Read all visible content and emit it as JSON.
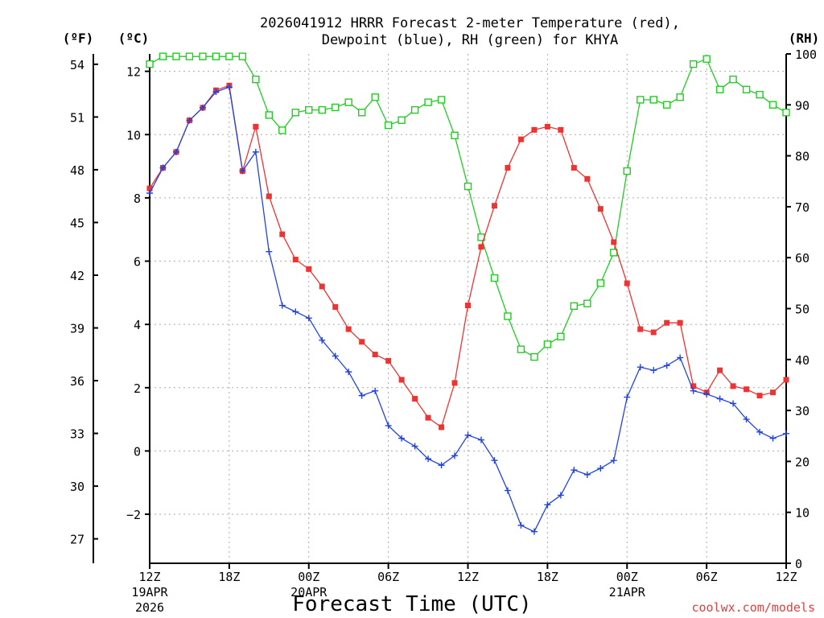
{
  "chart_data": {
    "type": "line",
    "title_line1": "2026041912 HRRR Forecast 2-meter Temperature (red),",
    "title_line2": "Dewpoint (blue), RH (green) for KHYA",
    "xlabel": "Forecast Time (UTC)",
    "credit": "coolwx.com/models",
    "units": {
      "fahrenheit": "(ºF)",
      "celsius": "(ºC)",
      "rh": "(RH)"
    },
    "x_forecast_hours": [
      0,
      48
    ],
    "c_ylim": [
      -3.55,
      12.55
    ],
    "rh_ylim": [
      0,
      100
    ],
    "c_ticks": [
      -2,
      0,
      2,
      4,
      6,
      8,
      10,
      12
    ],
    "c_tick_labels": [
      "−2",
      "0",
      "2",
      "4",
      "6",
      "8",
      "10",
      "12"
    ],
    "f_ticks": [
      27,
      30,
      33,
      36,
      39,
      42,
      45,
      48,
      51,
      54
    ],
    "f_tick_labels": [
      "27",
      "30",
      "33",
      "36",
      "39",
      "42",
      "45",
      "48",
      "51",
      "54"
    ],
    "rh_ticks": [
      0,
      10,
      20,
      30,
      40,
      50,
      60,
      70,
      80,
      90,
      100
    ],
    "rh_tick_labels": [
      "0",
      "10",
      "20",
      "30",
      "40",
      "50",
      "60",
      "70",
      "80",
      "90",
      "100"
    ],
    "x_ticks": [
      {
        "hour": 0,
        "label": "12Z",
        "date": "19APR",
        "year": "2026"
      },
      {
        "hour": 6,
        "label": "18Z"
      },
      {
        "hour": 12,
        "label": "00Z",
        "date": "20APR"
      },
      {
        "hour": 18,
        "label": "06Z"
      },
      {
        "hour": 24,
        "label": "12Z"
      },
      {
        "hour": 30,
        "label": "18Z"
      },
      {
        "hour": 36,
        "label": "00Z",
        "date": "21APR"
      },
      {
        "hour": 42,
        "label": "06Z"
      },
      {
        "hour": 48,
        "label": "12Z"
      }
    ],
    "series": [
      {
        "name": "2-meter Temperature",
        "units": "°C",
        "color": "#ee3333",
        "marker": "filled-square",
        "values": [
          8.3,
          8.95,
          9.45,
          10.45,
          10.85,
          11.4,
          11.55,
          8.85,
          10.25,
          8.05,
          6.85,
          6.05,
          5.75,
          5.2,
          4.55,
          3.85,
          3.45,
          3.05,
          2.85,
          2.25,
          1.65,
          1.05,
          0.75,
          2.15,
          4.6,
          6.45,
          7.75,
          8.95,
          9.85,
          10.15,
          10.25,
          10.15,
          8.95,
          8.6,
          7.65,
          6.6,
          5.3,
          3.85,
          3.75,
          4.05,
          4.05,
          2.05,
          1.85,
          2.55,
          2.05,
          1.95,
          1.75,
          1.85,
          2.25
        ]
      },
      {
        "name": "Dewpoint",
        "units": "°C",
        "color": "#2244dd",
        "marker": "plus",
        "values": [
          8.15,
          8.95,
          9.45,
          10.45,
          10.85,
          11.35,
          11.5,
          8.85,
          9.45,
          6.3,
          4.6,
          4.4,
          4.2,
          3.5,
          3.0,
          2.5,
          1.75,
          1.9,
          0.8,
          0.4,
          0.15,
          -0.25,
          -0.45,
          -0.15,
          0.5,
          0.35,
          -0.3,
          -1.25,
          -2.35,
          -2.55,
          -1.7,
          -1.4,
          -0.6,
          -0.75,
          -0.55,
          -0.3,
          1.7,
          2.65,
          2.55,
          2.7,
          2.95,
          1.9,
          1.8,
          1.65,
          1.5,
          1.0,
          0.6,
          0.4,
          0.55
        ]
      },
      {
        "name": "RH",
        "units": "%",
        "color": "#22cc22",
        "marker": "open-square",
        "values": [
          98,
          99.5,
          99.5,
          99.5,
          99.5,
          99.5,
          99.5,
          99.5,
          95,
          88,
          85,
          88.5,
          89,
          89,
          89.5,
          90.5,
          88.5,
          91.5,
          86,
          87,
          89,
          90.5,
          91,
          84,
          74,
          64,
          56,
          48.5,
          42,
          40.5,
          43,
          44.5,
          50.5,
          51,
          55,
          61,
          77,
          91,
          91,
          90,
          91.5,
          98,
          99,
          93,
          95,
          93,
          92,
          90,
          88.5
        ]
      }
    ]
  }
}
